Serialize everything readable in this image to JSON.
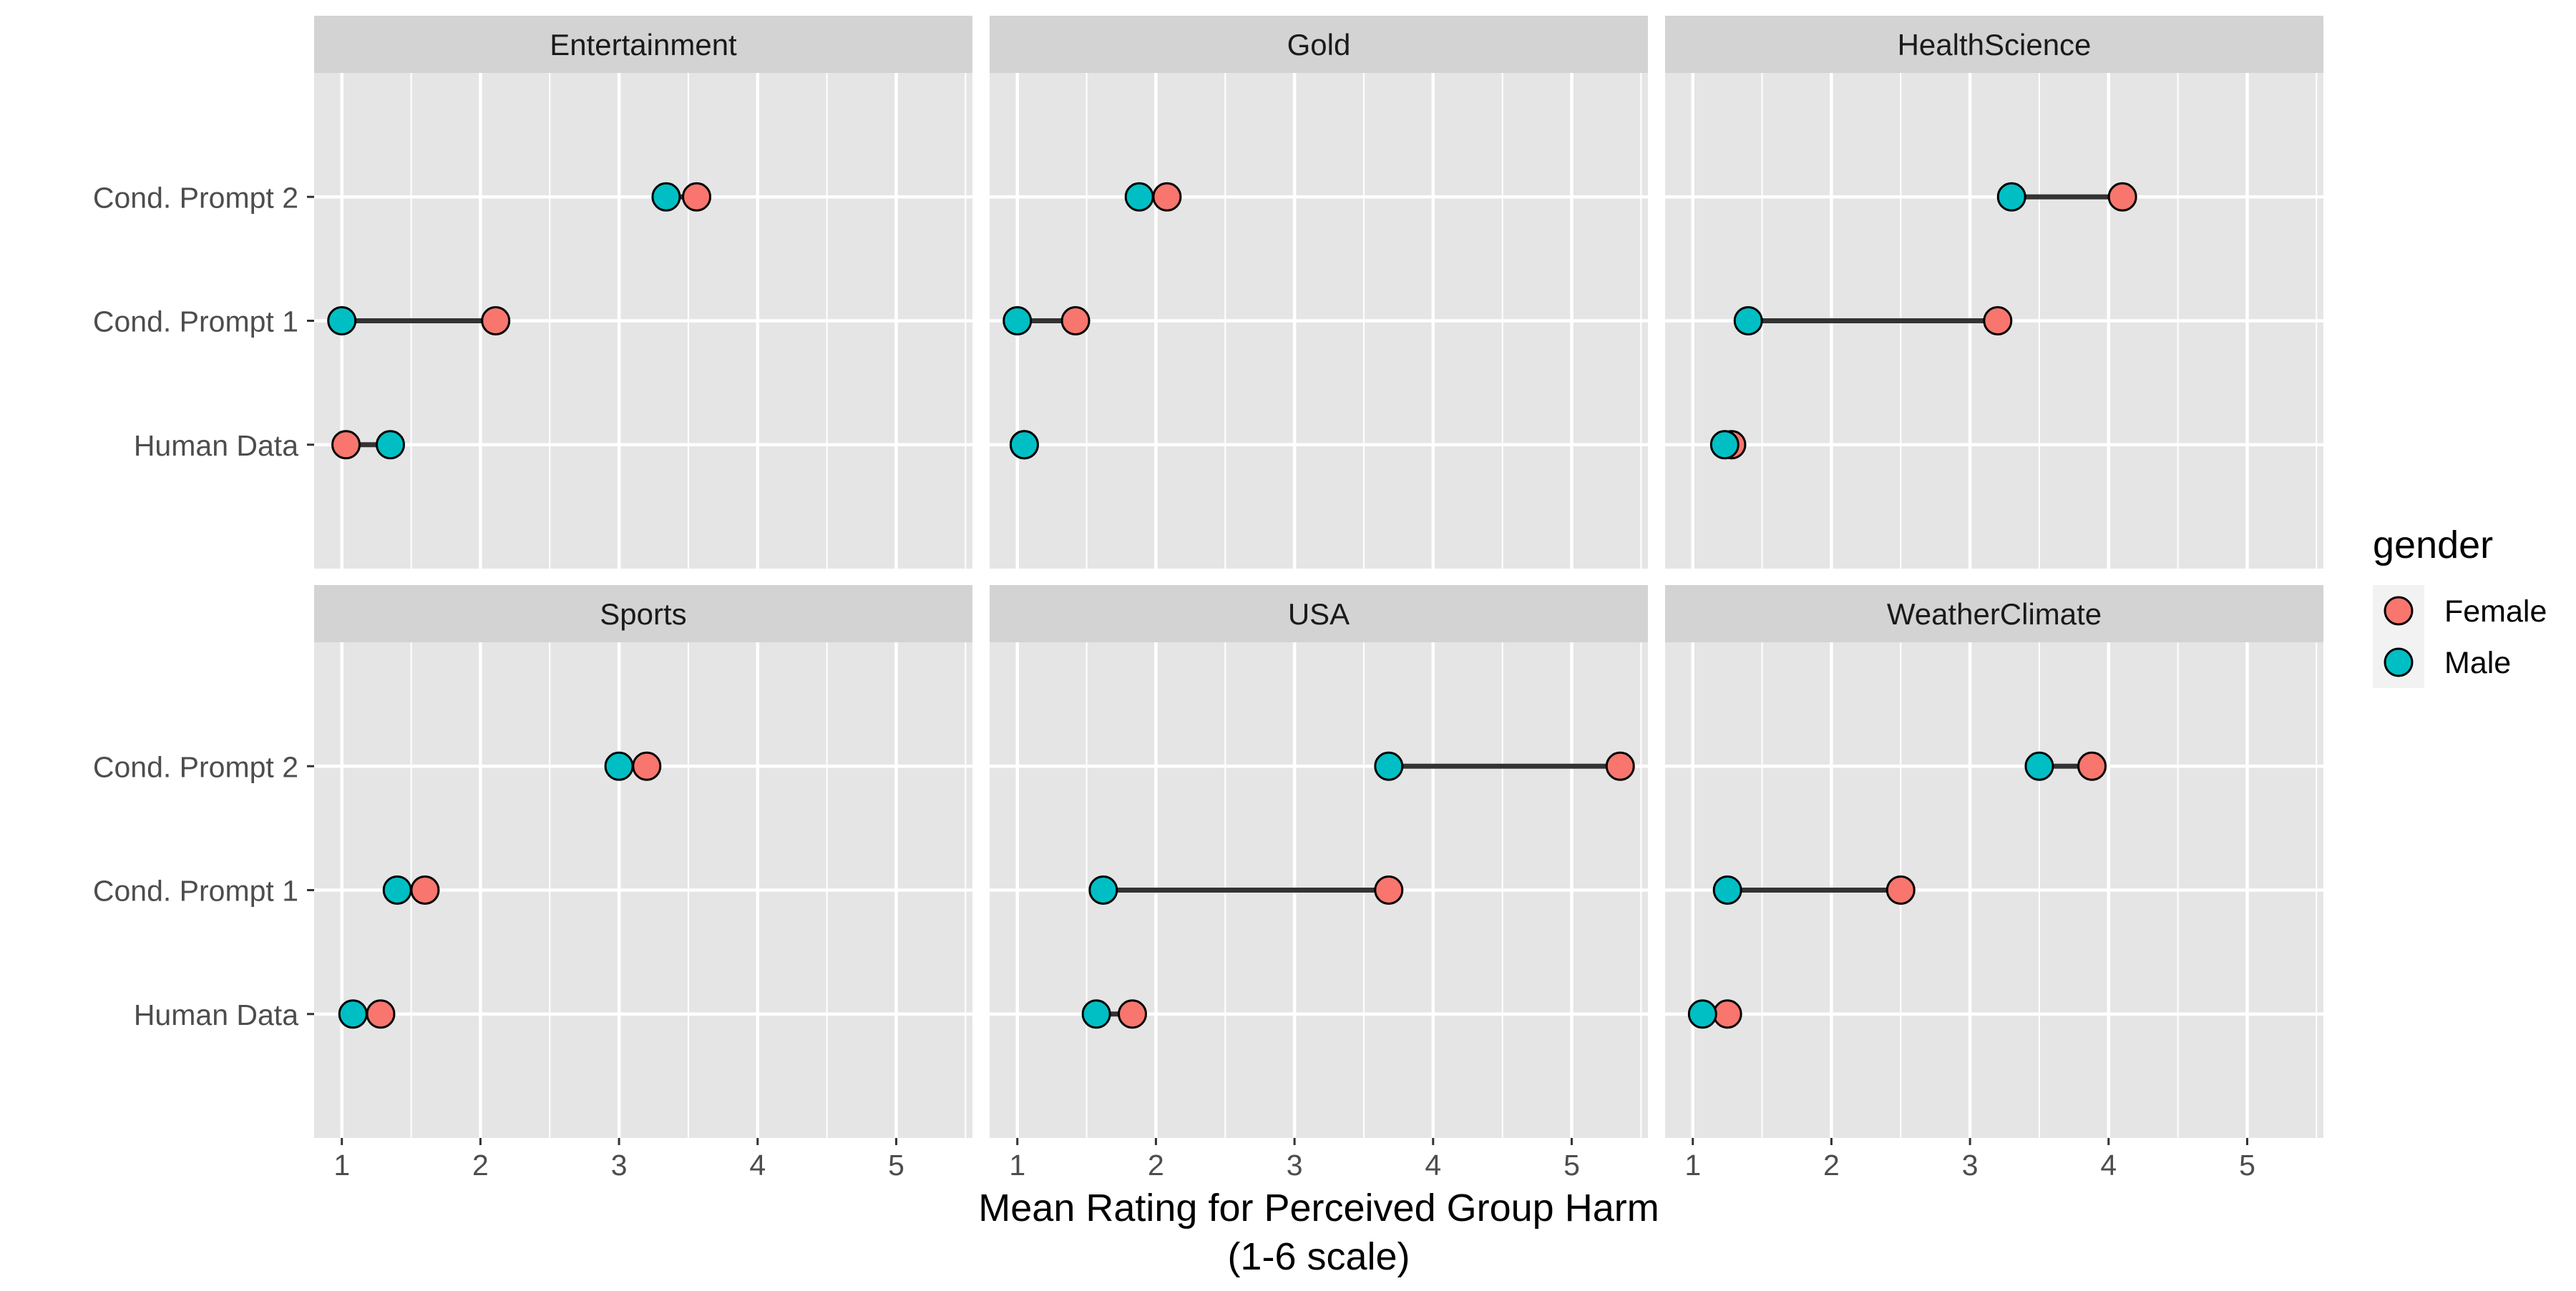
{
  "chart_data": {
    "type": "dumbbell",
    "xlabel_line1": "Mean Rating for Perceived Group Harm",
    "xlabel_line2": "(1-6 scale)",
    "xlim": [
      0.8,
      5.55
    ],
    "x_ticks": [
      1,
      2,
      3,
      4,
      5
    ],
    "x_tick_labels": [
      "1",
      "2",
      "3",
      "4",
      "5"
    ],
    "y_categories": [
      "Human Data",
      "Cond. Prompt 1",
      "Cond. Prompt 2"
    ],
    "grid": true,
    "legend": {
      "title": "gender",
      "position": "right",
      "entries": [
        {
          "label": "Female",
          "color": "#F8766D"
        },
        {
          "label": "Male",
          "color": "#00BFC4"
        }
      ]
    },
    "colors": {
      "panel_bg": "#E5E5E5",
      "strip_bg": "#D3D3D3",
      "gridline": "#FFFFFF",
      "segment": "#333333",
      "female": "#F8766D",
      "male": "#00BFC4"
    },
    "facets": [
      {
        "name": "Entertainment",
        "rows": [
          {
            "category": "Cond. Prompt 2",
            "female": 3.56,
            "male": 3.34
          },
          {
            "category": "Cond. Prompt 1",
            "female": 2.11,
            "male": 1.0
          },
          {
            "category": "Human Data",
            "female": 1.03,
            "male": 1.35
          }
        ]
      },
      {
        "name": "Gold",
        "rows": [
          {
            "category": "Cond. Prompt 2",
            "female": 2.08,
            "male": 1.88
          },
          {
            "category": "Cond. Prompt 1",
            "female": 1.42,
            "male": 1.0
          },
          {
            "category": "Human Data",
            "female": 1.05,
            "male": 1.05
          }
        ]
      },
      {
        "name": "HealthScience",
        "rows": [
          {
            "category": "Cond. Prompt 2",
            "female": 4.1,
            "male": 3.3
          },
          {
            "category": "Cond. Prompt 1",
            "female": 3.2,
            "male": 1.4
          },
          {
            "category": "Human Data",
            "female": 1.28,
            "male": 1.23
          }
        ]
      },
      {
        "name": "Sports",
        "rows": [
          {
            "category": "Cond. Prompt 2",
            "female": 3.2,
            "male": 3.0
          },
          {
            "category": "Cond. Prompt 1",
            "female": 1.6,
            "male": 1.4
          },
          {
            "category": "Human Data",
            "female": 1.28,
            "male": 1.08
          }
        ]
      },
      {
        "name": "USA",
        "rows": [
          {
            "category": "Cond. Prompt 2",
            "female": 5.35,
            "male": 3.68
          },
          {
            "category": "Cond. Prompt 1",
            "female": 3.68,
            "male": 1.62
          },
          {
            "category": "Human Data",
            "female": 1.83,
            "male": 1.57
          }
        ]
      },
      {
        "name": "WeatherClimate",
        "rows": [
          {
            "category": "Cond. Prompt 2",
            "female": 3.88,
            "male": 3.5
          },
          {
            "category": "Cond. Prompt 1",
            "female": 2.5,
            "male": 1.25
          },
          {
            "category": "Human Data",
            "female": 1.25,
            "male": 1.07
          }
        ]
      }
    ]
  }
}
